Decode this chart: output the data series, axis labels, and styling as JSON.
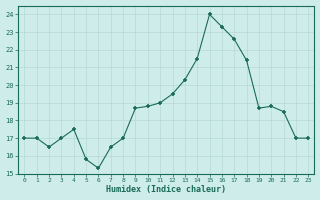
{
  "x": [
    0,
    1,
    2,
    3,
    4,
    5,
    6,
    7,
    8,
    9,
    10,
    11,
    12,
    13,
    14,
    15,
    16,
    17,
    18,
    19,
    20,
    21,
    22,
    23
  ],
  "y": [
    17.0,
    17.0,
    16.5,
    17.0,
    17.5,
    15.8,
    15.3,
    16.5,
    17.0,
    18.7,
    18.8,
    19.0,
    19.5,
    20.3,
    21.5,
    24.0,
    23.3,
    22.6,
    21.4,
    18.7,
    18.8,
    18.5,
    17.0,
    17.0
  ],
  "title": "",
  "xlabel": "Humidex (Indice chaleur)",
  "ylabel": "",
  "xlim": [
    -0.5,
    23.5
  ],
  "ylim": [
    15,
    24.5
  ],
  "yticks": [
    15,
    16,
    17,
    18,
    19,
    20,
    21,
    22,
    23,
    24
  ],
  "xticks": [
    0,
    1,
    2,
    3,
    4,
    5,
    6,
    7,
    8,
    9,
    10,
    11,
    12,
    13,
    14,
    15,
    16,
    17,
    18,
    19,
    20,
    21,
    22,
    23
  ],
  "line_color": "#1a6b5a",
  "marker": "+",
  "bg_color": "#ceecea",
  "grid_color": "#b8d8d5",
  "axis_label_color": "#1a6b5a",
  "tick_color": "#1a6b5a"
}
